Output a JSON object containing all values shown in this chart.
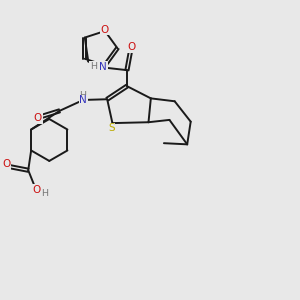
{
  "bg_color": "#e8e8e8",
  "bond_color": "#1a1a1a",
  "N_color": "#3333bb",
  "O_color": "#cc1111",
  "S_color": "#bbaa00",
  "H_color": "#777777",
  "lw": 1.4,
  "dbl_off": 0.06,
  "figsize": [
    3.0,
    3.0
  ],
  "dpi": 100,
  "xlim": [
    0,
    10
  ],
  "ylim": [
    0,
    10
  ]
}
